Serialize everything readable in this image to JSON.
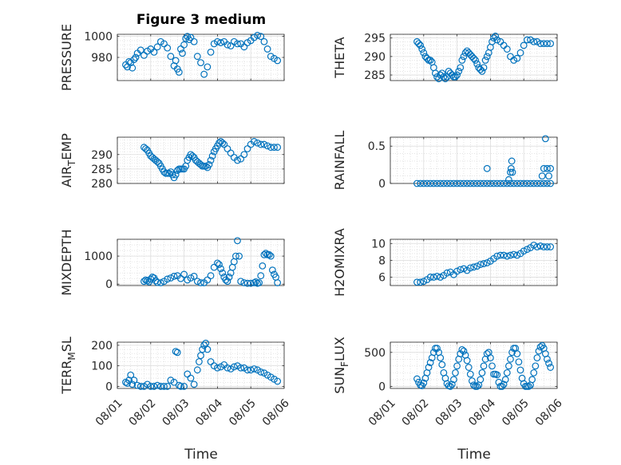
{
  "figure": {
    "title": "Figure 3 medium",
    "xlabel": "Time",
    "marker_color": "#0072bd"
  },
  "chart_data": [
    {
      "type": "scatter",
      "name": "pressure",
      "title": "Figure 3 medium",
      "ylabel_parts": [
        "PRESSURE"
      ],
      "xlabel": "",
      "ylim": [
        958,
        1002
      ],
      "yticks": [
        980,
        1000
      ],
      "ytick_labels": [
        "980",
        "1000"
      ],
      "xlim": [
        0,
        5
      ],
      "xticks": [
        0,
        1,
        2,
        3,
        4,
        5
      ],
      "xtick_labels": [
        "08/01",
        "08/02",
        "08/03",
        "08/04",
        "08/05",
        "08/06"
      ],
      "grid": true,
      "x": [
        0.25,
        0.3,
        0.35,
        0.4,
        0.45,
        0.5,
        0.55,
        0.6,
        0.7,
        0.8,
        0.9,
        1.0,
        1.1,
        1.2,
        1.3,
        1.4,
        1.5,
        1.6,
        1.7,
        1.75,
        1.8,
        1.85,
        1.9,
        1.95,
        2.0,
        2.05,
        2.1,
        2.15,
        2.2,
        2.3,
        2.4,
        2.5,
        2.6,
        2.7,
        2.8,
        2.9,
        3.0,
        3.1,
        3.2,
        3.3,
        3.4,
        3.5,
        3.6,
        3.7,
        3.8,
        3.9,
        4.0,
        4.1,
        4.2,
        4.3,
        4.4,
        4.5,
        4.6,
        4.7,
        4.8
      ],
      "y": [
        973,
        971,
        976,
        975,
        970,
        978,
        980,
        984,
        987,
        982,
        986,
        988,
        985,
        990,
        995,
        993,
        989,
        981,
        972,
        977,
        969,
        966,
        988,
        984,
        992,
        998,
        1000,
        997,
        999,
        995,
        981,
        975,
        964,
        971,
        985,
        993,
        995,
        994,
        995,
        992,
        991,
        995,
        993,
        993,
        990,
        994,
        996,
        999,
        1001,
        1000,
        995,
        988,
        981,
        979,
        977
      ]
    },
    {
      "type": "scatter",
      "name": "theta",
      "title": "",
      "ylabel_parts": [
        "THETA"
      ],
      "xlabel": "",
      "ylim": [
        283.5,
        296
      ],
      "yticks": [
        285,
        290,
        295
      ],
      "ytick_labels": [
        "285",
        "290",
        "295"
      ],
      "xlim": [
        0,
        5
      ],
      "xticks": [
        0,
        1,
        2,
        3,
        4,
        5
      ],
      "xtick_labels": [
        "08/01",
        "08/02",
        "08/03",
        "08/04",
        "08/05",
        "08/06"
      ],
      "grid": true,
      "x": [
        0.8,
        0.85,
        0.9,
        0.95,
        1.0,
        1.05,
        1.1,
        1.15,
        1.2,
        1.25,
        1.3,
        1.35,
        1.4,
        1.45,
        1.5,
        1.55,
        1.6,
        1.65,
        1.7,
        1.75,
        1.8,
        1.85,
        1.9,
        1.95,
        2.0,
        2.05,
        2.1,
        2.15,
        2.2,
        2.25,
        2.3,
        2.35,
        2.4,
        2.45,
        2.5,
        2.55,
        2.6,
        2.65,
        2.7,
        2.75,
        2.8,
        2.85,
        2.9,
        2.95,
        3.0,
        3.05,
        3.1,
        3.15,
        3.2,
        3.3,
        3.4,
        3.5,
        3.6,
        3.7,
        3.8,
        3.9,
        4.0,
        4.1,
        4.2,
        4.3,
        4.4,
        4.5,
        4.6,
        4.7,
        4.8
      ],
      "y": [
        294,
        293.5,
        293,
        292,
        291,
        290,
        289.5,
        289,
        289,
        288.5,
        287,
        285.5,
        284.5,
        284,
        285,
        285.5,
        284.5,
        284,
        284.5,
        286,
        285.5,
        285,
        284.5,
        284.5,
        285,
        286,
        287,
        289,
        290,
        291,
        291.5,
        291,
        290.5,
        290,
        289.5,
        289,
        288,
        287,
        286.5,
        286,
        287,
        289,
        290,
        291,
        292.5,
        294,
        295,
        295.5,
        294.5,
        294,
        293,
        292,
        290,
        289,
        289.5,
        291,
        293,
        294.5,
        294.5,
        294,
        294,
        293.5,
        293.5,
        293.5,
        293.5
      ]
    },
    {
      "type": "scatter",
      "name": "air_temp",
      "title": "",
      "ylabel_parts": [
        "AIR",
        "T",
        "EMP"
      ],
      "xlabel": "",
      "ylim": [
        280,
        296
      ],
      "yticks": [
        280,
        285,
        290
      ],
      "ytick_labels": [
        "280",
        "285",
        "290"
      ],
      "xlim": [
        0,
        5
      ],
      "xticks": [
        0,
        1,
        2,
        3,
        4,
        5
      ],
      "xtick_labels": [
        "08/01",
        "08/02",
        "08/03",
        "08/04",
        "08/05",
        "08/06"
      ],
      "grid": true,
      "x": [
        0.8,
        0.85,
        0.9,
        0.95,
        1.0,
        1.05,
        1.1,
        1.15,
        1.2,
        1.25,
        1.3,
        1.35,
        1.4,
        1.45,
        1.5,
        1.55,
        1.6,
        1.65,
        1.7,
        1.75,
        1.8,
        1.85,
        1.9,
        1.95,
        2.0,
        2.05,
        2.1,
        2.15,
        2.2,
        2.25,
        2.3,
        2.35,
        2.4,
        2.45,
        2.5,
        2.55,
        2.6,
        2.65,
        2.7,
        2.75,
        2.8,
        2.85,
        2.9,
        2.95,
        3.0,
        3.05,
        3.1,
        3.15,
        3.2,
        3.3,
        3.4,
        3.5,
        3.6,
        3.7,
        3.8,
        3.9,
        4.0,
        4.1,
        4.2,
        4.3,
        4.4,
        4.5,
        4.6,
        4.7,
        4.8
      ],
      "y": [
        292.5,
        292,
        291.5,
        290.5,
        289.5,
        289,
        288.5,
        288,
        287.5,
        287,
        286,
        285,
        284,
        283.5,
        283.5,
        283.5,
        284,
        283,
        282,
        283,
        284.5,
        285,
        285,
        285,
        285,
        286,
        288,
        289,
        290,
        289.5,
        289,
        288,
        287.5,
        287,
        286.5,
        286,
        286,
        286,
        285.5,
        286.5,
        288,
        289.5,
        291,
        292,
        293,
        294,
        294.5,
        294,
        293.5,
        292,
        290.5,
        289,
        288,
        288.5,
        290,
        292,
        293.5,
        294.5,
        294,
        293.5,
        293.5,
        293,
        292.5,
        292.5,
        292.5
      ]
    },
    {
      "type": "scatter",
      "name": "rainfall",
      "title": "",
      "ylabel_parts": [
        "RAINFALL"
      ],
      "xlabel": "",
      "ylim": [
        0,
        0.62
      ],
      "yticks": [
        0,
        0.5
      ],
      "ytick_labels": [
        "0",
        "0.5"
      ],
      "xlim": [
        0,
        5
      ],
      "xticks": [
        0,
        1,
        2,
        3,
        4,
        5
      ],
      "xtick_labels": [
        "08/01",
        "08/02",
        "08/03",
        "08/04",
        "08/05",
        "08/06"
      ],
      "grid": true,
      "x": [
        0.8,
        0.9,
        1.0,
        1.1,
        1.2,
        1.3,
        1.4,
        1.5,
        1.6,
        1.7,
        1.8,
        1.9,
        2.0,
        2.1,
        2.2,
        2.3,
        2.4,
        2.5,
        2.6,
        2.7,
        2.8,
        2.9,
        3.0,
        3.1,
        3.2,
        3.3,
        3.4,
        3.5,
        3.6,
        3.7,
        3.8,
        3.9,
        4.0,
        4.1,
        4.2,
        4.3,
        4.4,
        4.5,
        4.6,
        4.7,
        4.8,
        2.9,
        3.55,
        3.6,
        3.62,
        3.64,
        3.66,
        4.55,
        4.6,
        4.65,
        4.7,
        4.75,
        4.8
      ],
      "y": [
        0,
        0,
        0,
        0,
        0,
        0,
        0,
        0,
        0,
        0,
        0,
        0,
        0,
        0,
        0,
        0,
        0,
        0,
        0,
        0,
        0,
        0,
        0,
        0,
        0,
        0,
        0,
        0,
        0,
        0,
        0,
        0,
        0,
        0,
        0,
        0,
        0,
        0,
        0,
        0,
        0,
        0.2,
        0.05,
        0.15,
        0.2,
        0.3,
        0.15,
        0.1,
        0.2,
        0.6,
        0.2,
        0.1,
        0.2
      ]
    },
    {
      "type": "scatter",
      "name": "mixdepth",
      "title": "",
      "ylabel_parts": [
        "MIXDEPTH"
      ],
      "xlabel": "",
      "ylim": [
        -50,
        1600
      ],
      "yticks": [
        0,
        1000
      ],
      "ytick_labels": [
        "0",
        "1000"
      ],
      "xlim": [
        0,
        5
      ],
      "xticks": [
        0,
        1,
        2,
        3,
        4,
        5
      ],
      "xtick_labels": [
        "08/01",
        "08/02",
        "08/03",
        "08/04",
        "08/05",
        "08/06"
      ],
      "grid": true,
      "x": [
        0.8,
        0.85,
        0.9,
        0.95,
        1.0,
        1.05,
        1.1,
        1.15,
        1.2,
        1.3,
        1.4,
        1.5,
        1.6,
        1.7,
        1.8,
        1.9,
        2.0,
        2.1,
        2.2,
        2.3,
        2.4,
        2.5,
        2.6,
        2.7,
        2.8,
        2.9,
        3.0,
        3.05,
        3.1,
        3.15,
        3.2,
        3.25,
        3.3,
        3.35,
        3.4,
        3.45,
        3.5,
        3.55,
        3.6,
        3.65,
        3.7,
        3.8,
        3.9,
        4.0,
        4.1,
        4.15,
        4.2,
        4.25,
        4.3,
        4.35,
        4.4,
        4.45,
        4.5,
        4.55,
        4.6,
        4.65,
        4.7,
        4.75,
        4.8
      ],
      "y": [
        100,
        150,
        120,
        80,
        180,
        250,
        220,
        120,
        60,
        50,
        100,
        180,
        220,
        280,
        300,
        200,
        350,
        150,
        220,
        280,
        100,
        50,
        50,
        150,
        300,
        600,
        750,
        700,
        550,
        400,
        250,
        150,
        100,
        250,
        400,
        600,
        800,
        1000,
        1550,
        1000,
        100,
        50,
        30,
        30,
        50,
        80,
        30,
        50,
        300,
        650,
        1050,
        1100,
        1050,
        1050,
        1000,
        500,
        350,
        250,
        50
      ]
    },
    {
      "type": "scatter",
      "name": "h2omixra",
      "title": "",
      "ylabel_parts": [
        "H2OMIXRA"
      ],
      "xlabel": "",
      "ylim": [
        5,
        10.5
      ],
      "yticks": [
        6,
        8,
        10
      ],
      "ytick_labels": [
        "6",
        "8",
        "10"
      ],
      "xlim": [
        0,
        5
      ],
      "xticks": [
        0,
        1,
        2,
        3,
        4,
        5
      ],
      "xtick_labels": [
        "08/01",
        "08/02",
        "08/03",
        "08/04",
        "08/05",
        "08/06"
      ],
      "grid": true,
      "x": [
        0.8,
        0.9,
        1.0,
        1.1,
        1.2,
        1.3,
        1.4,
        1.5,
        1.6,
        1.7,
        1.8,
        1.9,
        2.0,
        2.1,
        2.2,
        2.3,
        2.4,
        2.5,
        2.6,
        2.7,
        2.8,
        2.9,
        3.0,
        3.1,
        3.2,
        3.3,
        3.4,
        3.5,
        3.6,
        3.7,
        3.8,
        3.9,
        4.0,
        4.1,
        4.2,
        4.3,
        4.4,
        4.5,
        4.6,
        4.7,
        4.8
      ],
      "y": [
        5.4,
        5.4,
        5.5,
        5.7,
        6.0,
        6.0,
        6.1,
        6.0,
        6.2,
        6.5,
        6.6,
        6.3,
        6.7,
        6.9,
        7.0,
        6.8,
        7.1,
        7.2,
        7.3,
        7.5,
        7.6,
        7.7,
        7.9,
        8.2,
        8.5,
        8.6,
        8.6,
        8.5,
        8.6,
        8.7,
        8.6,
        8.8,
        9.1,
        9.3,
        9.5,
        9.8,
        9.6,
        9.7,
        9.6,
        9.6,
        9.6
      ]
    },
    {
      "type": "scatter",
      "name": "terr_msl",
      "title": "",
      "ylabel_parts": [
        "TERR",
        "M",
        "SL"
      ],
      "xlabel": "",
      "ylim": [
        -10,
        215
      ],
      "yticks": [
        0,
        100,
        200
      ],
      "ytick_labels": [
        "0",
        "100",
        "200"
      ],
      "xlim": [
        0,
        5
      ],
      "xticks": [
        0,
        1,
        2,
        3,
        4,
        5
      ],
      "xtick_labels": [
        "08/01",
        "08/02",
        "08/03",
        "08/04",
        "08/05",
        "08/06"
      ],
      "grid": true,
      "x": [
        0.25,
        0.3,
        0.35,
        0.4,
        0.45,
        0.5,
        0.6,
        0.7,
        0.8,
        0.9,
        1.0,
        1.1,
        1.2,
        1.3,
        1.4,
        1.5,
        1.6,
        1.7,
        1.75,
        1.8,
        1.85,
        1.9,
        2.0,
        2.1,
        2.2,
        2.3,
        2.4,
        2.45,
        2.5,
        2.55,
        2.6,
        2.65,
        2.7,
        2.8,
        2.9,
        3.0,
        3.1,
        3.2,
        3.3,
        3.4,
        3.5,
        3.6,
        3.7,
        3.8,
        3.9,
        4.0,
        4.1,
        4.2,
        4.3,
        4.4,
        4.5,
        4.6,
        4.7,
        4.8
      ],
      "y": [
        20,
        15,
        30,
        55,
        10,
        30,
        5,
        0,
        0,
        10,
        0,
        0,
        5,
        0,
        0,
        0,
        30,
        20,
        170,
        165,
        5,
        0,
        0,
        60,
        40,
        10,
        80,
        120,
        150,
        180,
        200,
        210,
        180,
        120,
        100,
        90,
        95,
        105,
        90,
        85,
        95,
        100,
        90,
        90,
        80,
        80,
        85,
        80,
        70,
        65,
        55,
        45,
        35,
        25
      ]
    },
    {
      "type": "scatter",
      "name": "sun_flux",
      "title": "",
      "ylabel_parts": [
        "SUN",
        "F",
        "LUX"
      ],
      "xlabel": "",
      "ylim": [
        -30,
        650
      ],
      "yticks": [
        0,
        500
      ],
      "ytick_labels": [
        "0",
        "500"
      ],
      "xlim": [
        0,
        5
      ],
      "xticks": [
        0,
        1,
        2,
        3,
        4,
        5
      ],
      "xtick_labels": [
        "08/01",
        "08/02",
        "08/03",
        "08/04",
        "08/05",
        "08/06"
      ],
      "grid": true,
      "x": [
        0.8,
        0.85,
        0.9,
        0.95,
        1.0,
        1.05,
        1.1,
        1.15,
        1.2,
        1.25,
        1.3,
        1.35,
        1.4,
        1.45,
        1.5,
        1.55,
        1.6,
        1.65,
        1.7,
        1.75,
        1.8,
        1.85,
        1.9,
        1.95,
        2.0,
        2.05,
        2.1,
        2.15,
        2.2,
        2.25,
        2.3,
        2.35,
        2.4,
        2.45,
        2.5,
        2.55,
        2.6,
        2.65,
        2.7,
        2.75,
        2.8,
        2.85,
        2.9,
        2.95,
        3.0,
        3.05,
        3.1,
        3.15,
        3.2,
        3.25,
        3.3,
        3.35,
        3.4,
        3.45,
        3.5,
        3.55,
        3.6,
        3.65,
        3.7,
        3.75,
        3.8,
        3.85,
        3.9,
        3.95,
        4.0,
        4.05,
        4.1,
        4.15,
        4.2,
        4.25,
        4.3,
        4.35,
        4.4,
        4.45,
        4.5,
        4.55,
        4.6,
        4.65,
        4.7,
        4.75,
        4.8
      ],
      "y": [
        110,
        60,
        20,
        10,
        50,
        120,
        200,
        280,
        350,
        420,
        500,
        560,
        560,
        500,
        420,
        320,
        200,
        120,
        40,
        10,
        0,
        30,
        100,
        200,
        300,
        400,
        480,
        540,
        520,
        460,
        380,
        280,
        180,
        80,
        20,
        0,
        0,
        20,
        100,
        200,
        300,
        400,
        480,
        500,
        420,
        300,
        180,
        180,
        170,
        60,
        0,
        0,
        30,
        100,
        200,
        300,
        400,
        500,
        560,
        560,
        480,
        360,
        240,
        120,
        40,
        0,
        0,
        0,
        20,
        100,
        200,
        300,
        420,
        520,
        580,
        600,
        560,
        480,
        400,
        340,
        280
      ]
    }
  ]
}
